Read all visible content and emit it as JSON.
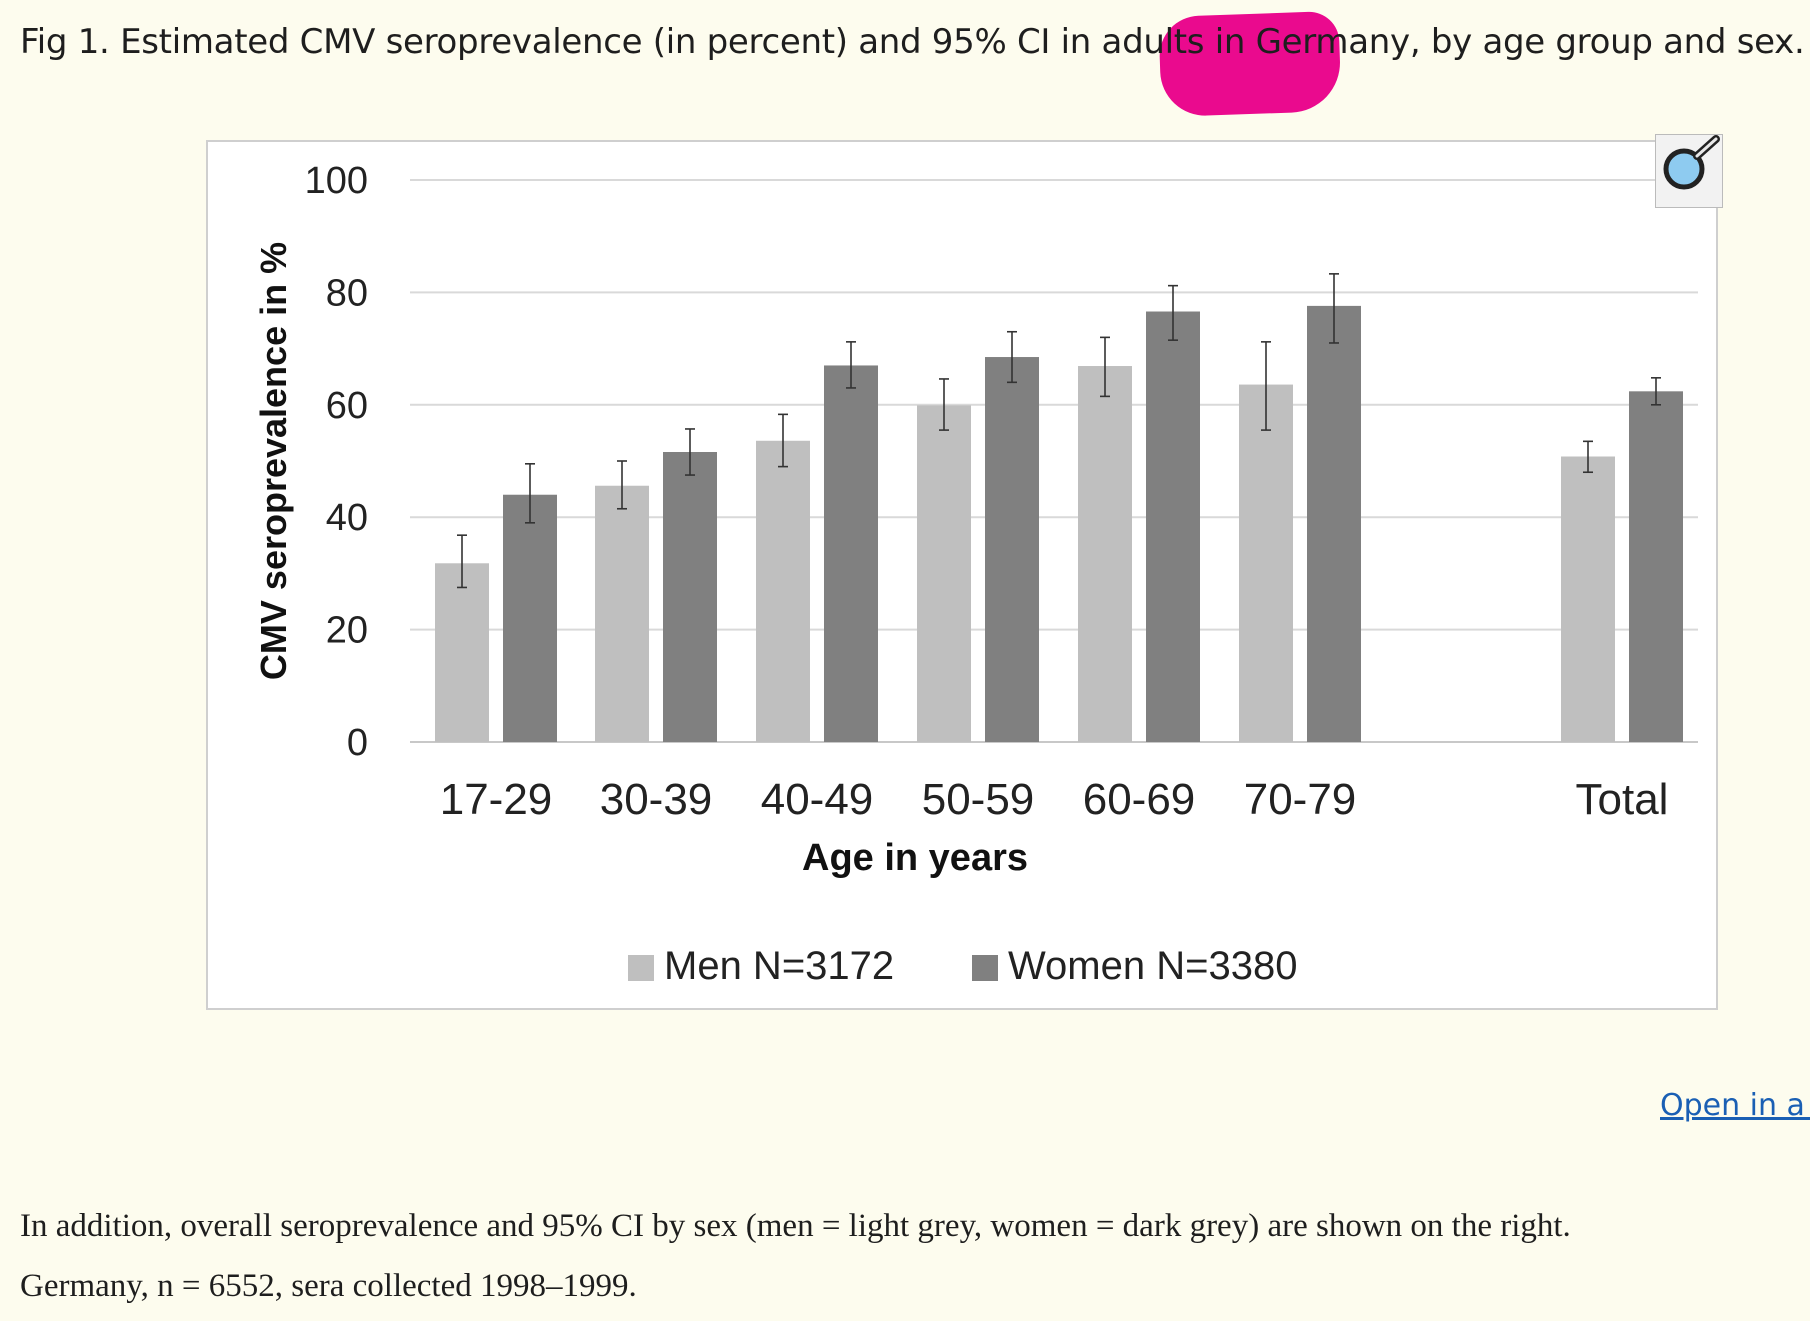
{
  "caption": {
    "before": "Fig 1. Estimated CMV seroprevalence (in percent) and 95% CI in adults i",
    "highlight": "n Germany",
    "after": ", by age group and sex.",
    "highlight_color": "#ea0a8e"
  },
  "zoom_icon": "magnifier-icon",
  "open_link": "Open in a n",
  "description": {
    "line1": "In addition, overall seroprevalence and 95% CI by sex (men = light grey, women = dark grey) are shown on the right.",
    "line2": "Germany, n = 6552, sera collected 1998–1999."
  },
  "chart_data": {
    "type": "bar",
    "categories": [
      "17-29",
      "30-39",
      "40-49",
      "50-59",
      "60-69",
      "70-79",
      "Total"
    ],
    "xlabel": "Age in years",
    "ylabel": "CMV seroprevalence in %",
    "ylim": [
      0,
      100
    ],
    "yticks": [
      0,
      20,
      40,
      60,
      80,
      100
    ],
    "grid": true,
    "legend_position": "bottom",
    "series": [
      {
        "name": "Men N=3172",
        "color": "#bfbfbf",
        "values": [
          31.8,
          45.6,
          53.6,
          59.9,
          66.9,
          63.6,
          50.8
        ],
        "ci_low": [
          27.5,
          41.5,
          49.0,
          55.5,
          61.5,
          55.5,
          48.0
        ],
        "ci_high": [
          36.8,
          50.0,
          58.3,
          64.6,
          72.0,
          71.2,
          53.5
        ]
      },
      {
        "name": "Women N=3380",
        "color": "#808080",
        "values": [
          44.0,
          51.6,
          67.0,
          68.5,
          76.6,
          77.6,
          62.4
        ],
        "ci_low": [
          39.0,
          47.5,
          63.0,
          64.0,
          71.5,
          71.0,
          60.0
        ],
        "ci_high": [
          49.5,
          55.7,
          71.2,
          73.0,
          81.2,
          83.3,
          64.8
        ]
      }
    ]
  }
}
